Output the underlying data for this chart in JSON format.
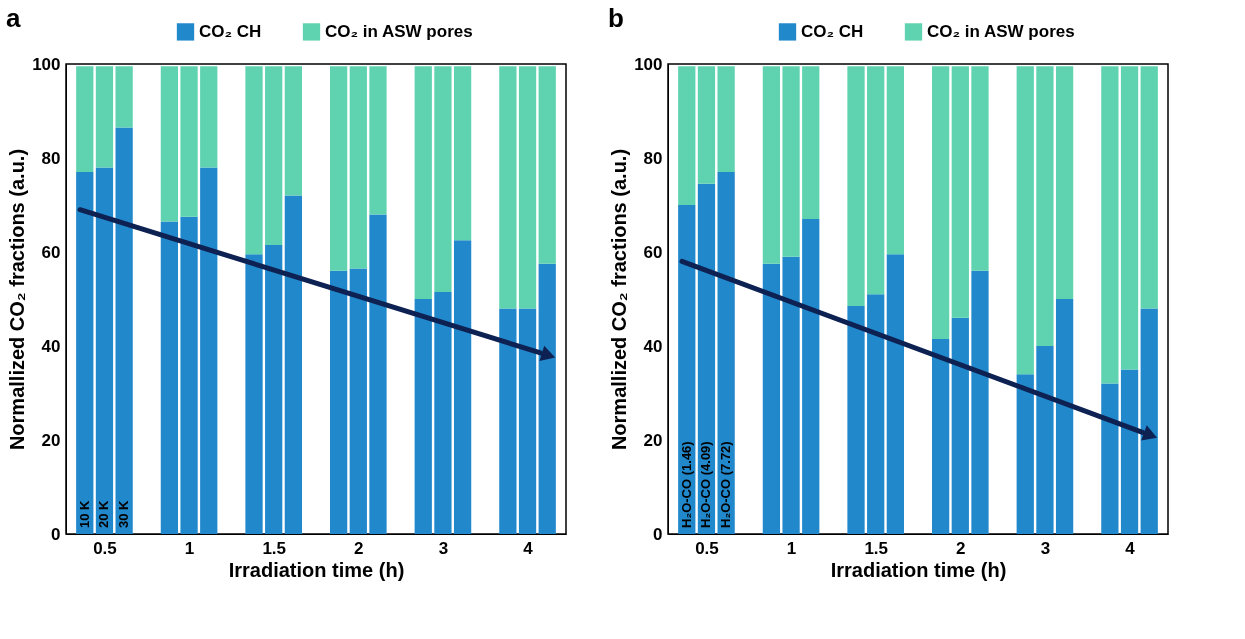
{
  "chart_data": [
    {
      "type": "bar",
      "title": "a",
      "stacked": true,
      "legend": "top",
      "xlabel": "Irradiation time (h)",
      "ylabel": "Normallized CO₂ fractions (a.u.)",
      "categories": [
        null,
        "0.5",
        null,
        null,
        "1",
        null,
        null,
        "1.5",
        null,
        null,
        "2",
        null,
        null,
        "3",
        null,
        null,
        "4",
        null
      ],
      "ylim": [
        0,
        100
      ],
      "yticks": [
        0,
        20,
        40,
        60,
        80,
        100
      ],
      "series": [
        {
          "name": "CO₂ CH",
          "color": "#2288cc",
          "values": [
            77,
            78,
            86.5,
            66.5,
            67.5,
            78,
            59.5,
            61.5,
            72,
            56,
            56.5,
            68,
            50,
            51.5,
            62.5,
            48,
            48,
            57.5
          ]
        },
        {
          "name": "CO₂ in ASW pores",
          "color": "#5fd3b0",
          "values": [
            22.5,
            21.5,
            13,
            33,
            32,
            21.5,
            40,
            38,
            27.5,
            43.5,
            43,
            31.5,
            49.5,
            48,
            37,
            51.5,
            51.5,
            42
          ]
        }
      ],
      "annotations": [
        "10 K",
        "20 K",
        "30 K"
      ]
    },
    {
      "type": "bar",
      "title": "b",
      "stacked": true,
      "legend": "top",
      "xlabel": "Irradiation time (h)",
      "ylabel": "Normallized CO₂ fractions (a.u.)",
      "categories": [
        null,
        "0.5",
        null,
        null,
        "1",
        null,
        null,
        "1.5",
        null,
        null,
        "2",
        null,
        null,
        "3",
        null,
        null,
        "4",
        null
      ],
      "ylim": [
        0,
        100
      ],
      "yticks": [
        0,
        20,
        40,
        60,
        80,
        100
      ],
      "series": [
        {
          "name": "CO₂ CH",
          "color": "#2288cc",
          "values": [
            70,
            74.5,
            77,
            57.5,
            59,
            67,
            48.5,
            51,
            59.5,
            41.5,
            46,
            56,
            34,
            40,
            50,
            32,
            35,
            48
          ]
        },
        {
          "name": "CO₂ in ASW pores",
          "color": "#5fd3b0",
          "values": [
            29.5,
            25,
            22.5,
            42,
            40.5,
            32.5,
            51,
            48.5,
            40,
            58,
            53.5,
            43.5,
            65.5,
            59.5,
            49.5,
            67.5,
            64.5,
            51.5
          ]
        }
      ],
      "annotations": [
        "H₂O-CO (1.46)",
        "H₂O-CO (4.09)",
        "H₂O-CO (7.72)"
      ]
    }
  ]
}
